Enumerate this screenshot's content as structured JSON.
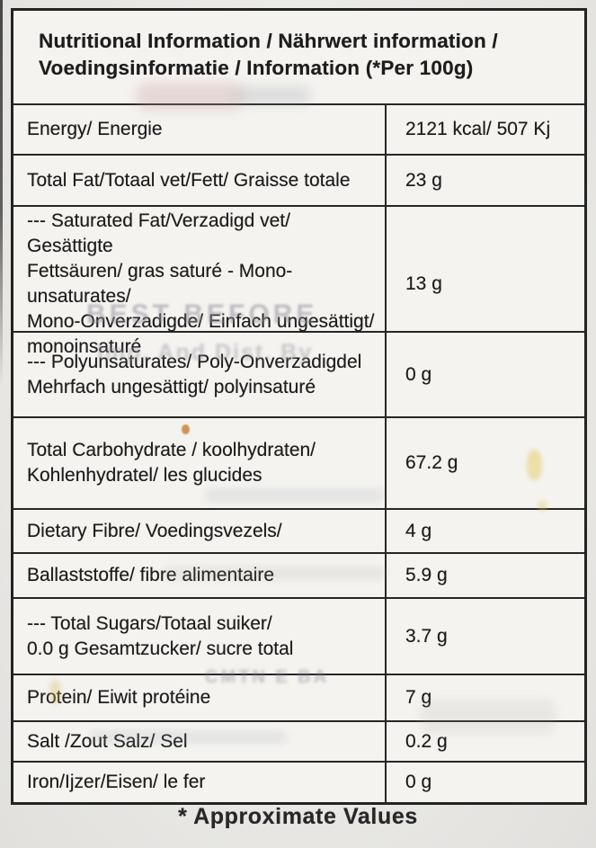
{
  "table": {
    "title": "Nutritional Information / Nährwert information /\nVoedingsinformatie / Information (*Per 100g)",
    "footnote": "* Approximate Values",
    "rows": [
      {
        "label": "Energy/ Energie",
        "value": "2121 kcal/ 507 Kj"
      },
      {
        "label": "Total Fat/Totaal vet/Fett/ Graisse totale",
        "value": "23 g"
      },
      {
        "label": "--- Saturated Fat/Verzadigd vet/ Gesättigte\nFettsäuren/ gras saturé - Mono-unsaturates/\nMono-Onverzadigde/ Einfach ungesättigt/\nmonoinsaturé",
        "value": "13 g"
      },
      {
        "label": "--- Polyunsaturates/ Poly-Onverzadigdel\nMehrfach ungesättigt/ polyinsaturé",
        "value": "0 g"
      },
      {
        "label": "Total Carbohydrate / koolhydraten/\nKohlenhydratel/ les glucides",
        "value": "67.2 g"
      },
      {
        "label": "Dietary Fibre/ Voedingsvezels/",
        "value": "4 g"
      },
      {
        "label": "Ballaststoffe/ fibre alimentaire",
        "value": "5.9 g"
      },
      {
        "label": "--- Total Sugars/Totaal suiker/\n0.0 g Gesamtzucker/ sucre total",
        "value": "3.7 g"
      },
      {
        "label": "Protein/ Eiwit protéine",
        "value": "7 g"
      },
      {
        "label": "Salt /Zout Salz/ Sel",
        "value": "0.2 g"
      },
      {
        "label": "Iron/Ijzer/Eisen/ le fer",
        "value": "0 g"
      }
    ]
  },
  "ghost_text": {
    "best_before": "BEST BEFORE",
    "imp_dist": "Imp. And Dist. By",
    "stamp": "CMTN E BA"
  },
  "colors": {
    "paper": "#eae9e6",
    "cell_background": "#f4f3f0",
    "border": "#232323",
    "ink": "#1d1d1d",
    "ghost_ink": "#95939b",
    "stain_orange": "#c47a28",
    "stain_yellow": "#e0c854"
  }
}
